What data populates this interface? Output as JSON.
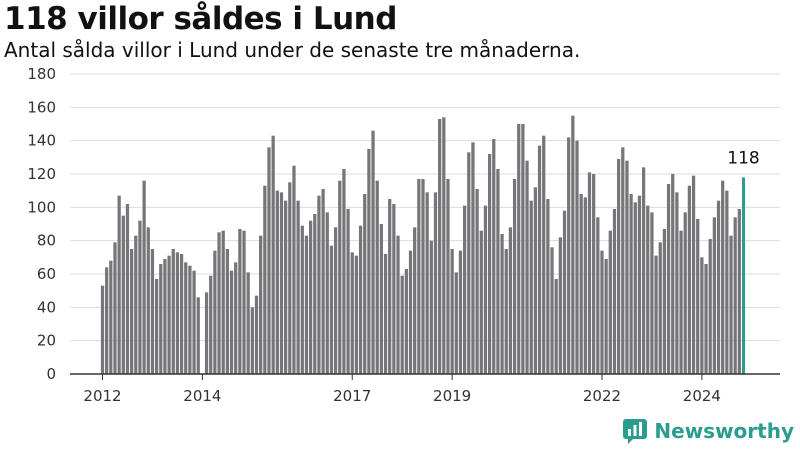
{
  "title": "118 villor såldes i Lund",
  "subtitle": "Antal sålda villor i Lund under de senaste tre månaderna.",
  "brand": {
    "name": "Newsworthy",
    "icon": "newsworthy-logo-icon",
    "color": "#2a9d8f"
  },
  "colors": {
    "bar": "#76757a",
    "highlight": "#2a9d8f",
    "grid": "#dddddd",
    "axis": "#333333"
  },
  "chart_data": {
    "type": "bar",
    "title": "",
    "xlabel": "",
    "ylabel": "",
    "ylim": [
      0,
      180
    ],
    "yticks": [
      0,
      20,
      40,
      60,
      80,
      100,
      120,
      140,
      160,
      180
    ],
    "xticks": [
      {
        "label": "2012",
        "index": 0
      },
      {
        "label": "2014",
        "index": 24
      },
      {
        "label": "2017",
        "index": 60
      },
      {
        "label": "2019",
        "index": 84
      },
      {
        "label": "2022",
        "index": 120
      },
      {
        "label": "2024",
        "index": 144
      }
    ],
    "highlight_label": "118",
    "grid": true,
    "values": [
      53,
      64,
      68,
      79,
      107,
      95,
      102,
      75,
      83,
      92,
      116,
      88,
      75,
      57,
      66,
      69,
      71,
      75,
      73,
      72,
      67,
      65,
      62,
      46,
      0,
      49,
      59,
      74,
      85,
      86,
      75,
      62,
      67,
      87,
      86,
      61,
      40,
      47,
      83,
      113,
      136,
      143,
      110,
      109,
      104,
      115,
      125,
      104,
      89,
      83,
      92,
      96,
      107,
      111,
      97,
      77,
      88,
      116,
      123,
      99,
      73,
      71,
      89,
      108,
      135,
      146,
      116,
      90,
      72,
      105,
      102,
      83,
      59,
      63,
      74,
      88,
      117,
      117,
      109,
      80,
      109,
      153,
      154,
      117,
      75,
      61,
      74,
      101,
      133,
      139,
      111,
      86,
      101,
      132,
      141,
      123,
      84,
      75,
      88,
      117,
      150,
      150,
      128,
      104,
      112,
      137,
      143,
      105,
      76,
      57,
      82,
      98,
      142,
      155,
      140,
      108,
      106,
      121,
      120,
      94,
      74,
      69,
      86,
      99,
      129,
      136,
      128,
      108,
      103,
      107,
      124,
      101,
      97,
      71,
      79,
      87,
      114,
      120,
      109,
      86,
      97,
      113,
      119,
      93,
      70,
      66,
      81,
      94,
      104,
      116,
      110,
      83,
      94,
      99,
      118
    ]
  }
}
